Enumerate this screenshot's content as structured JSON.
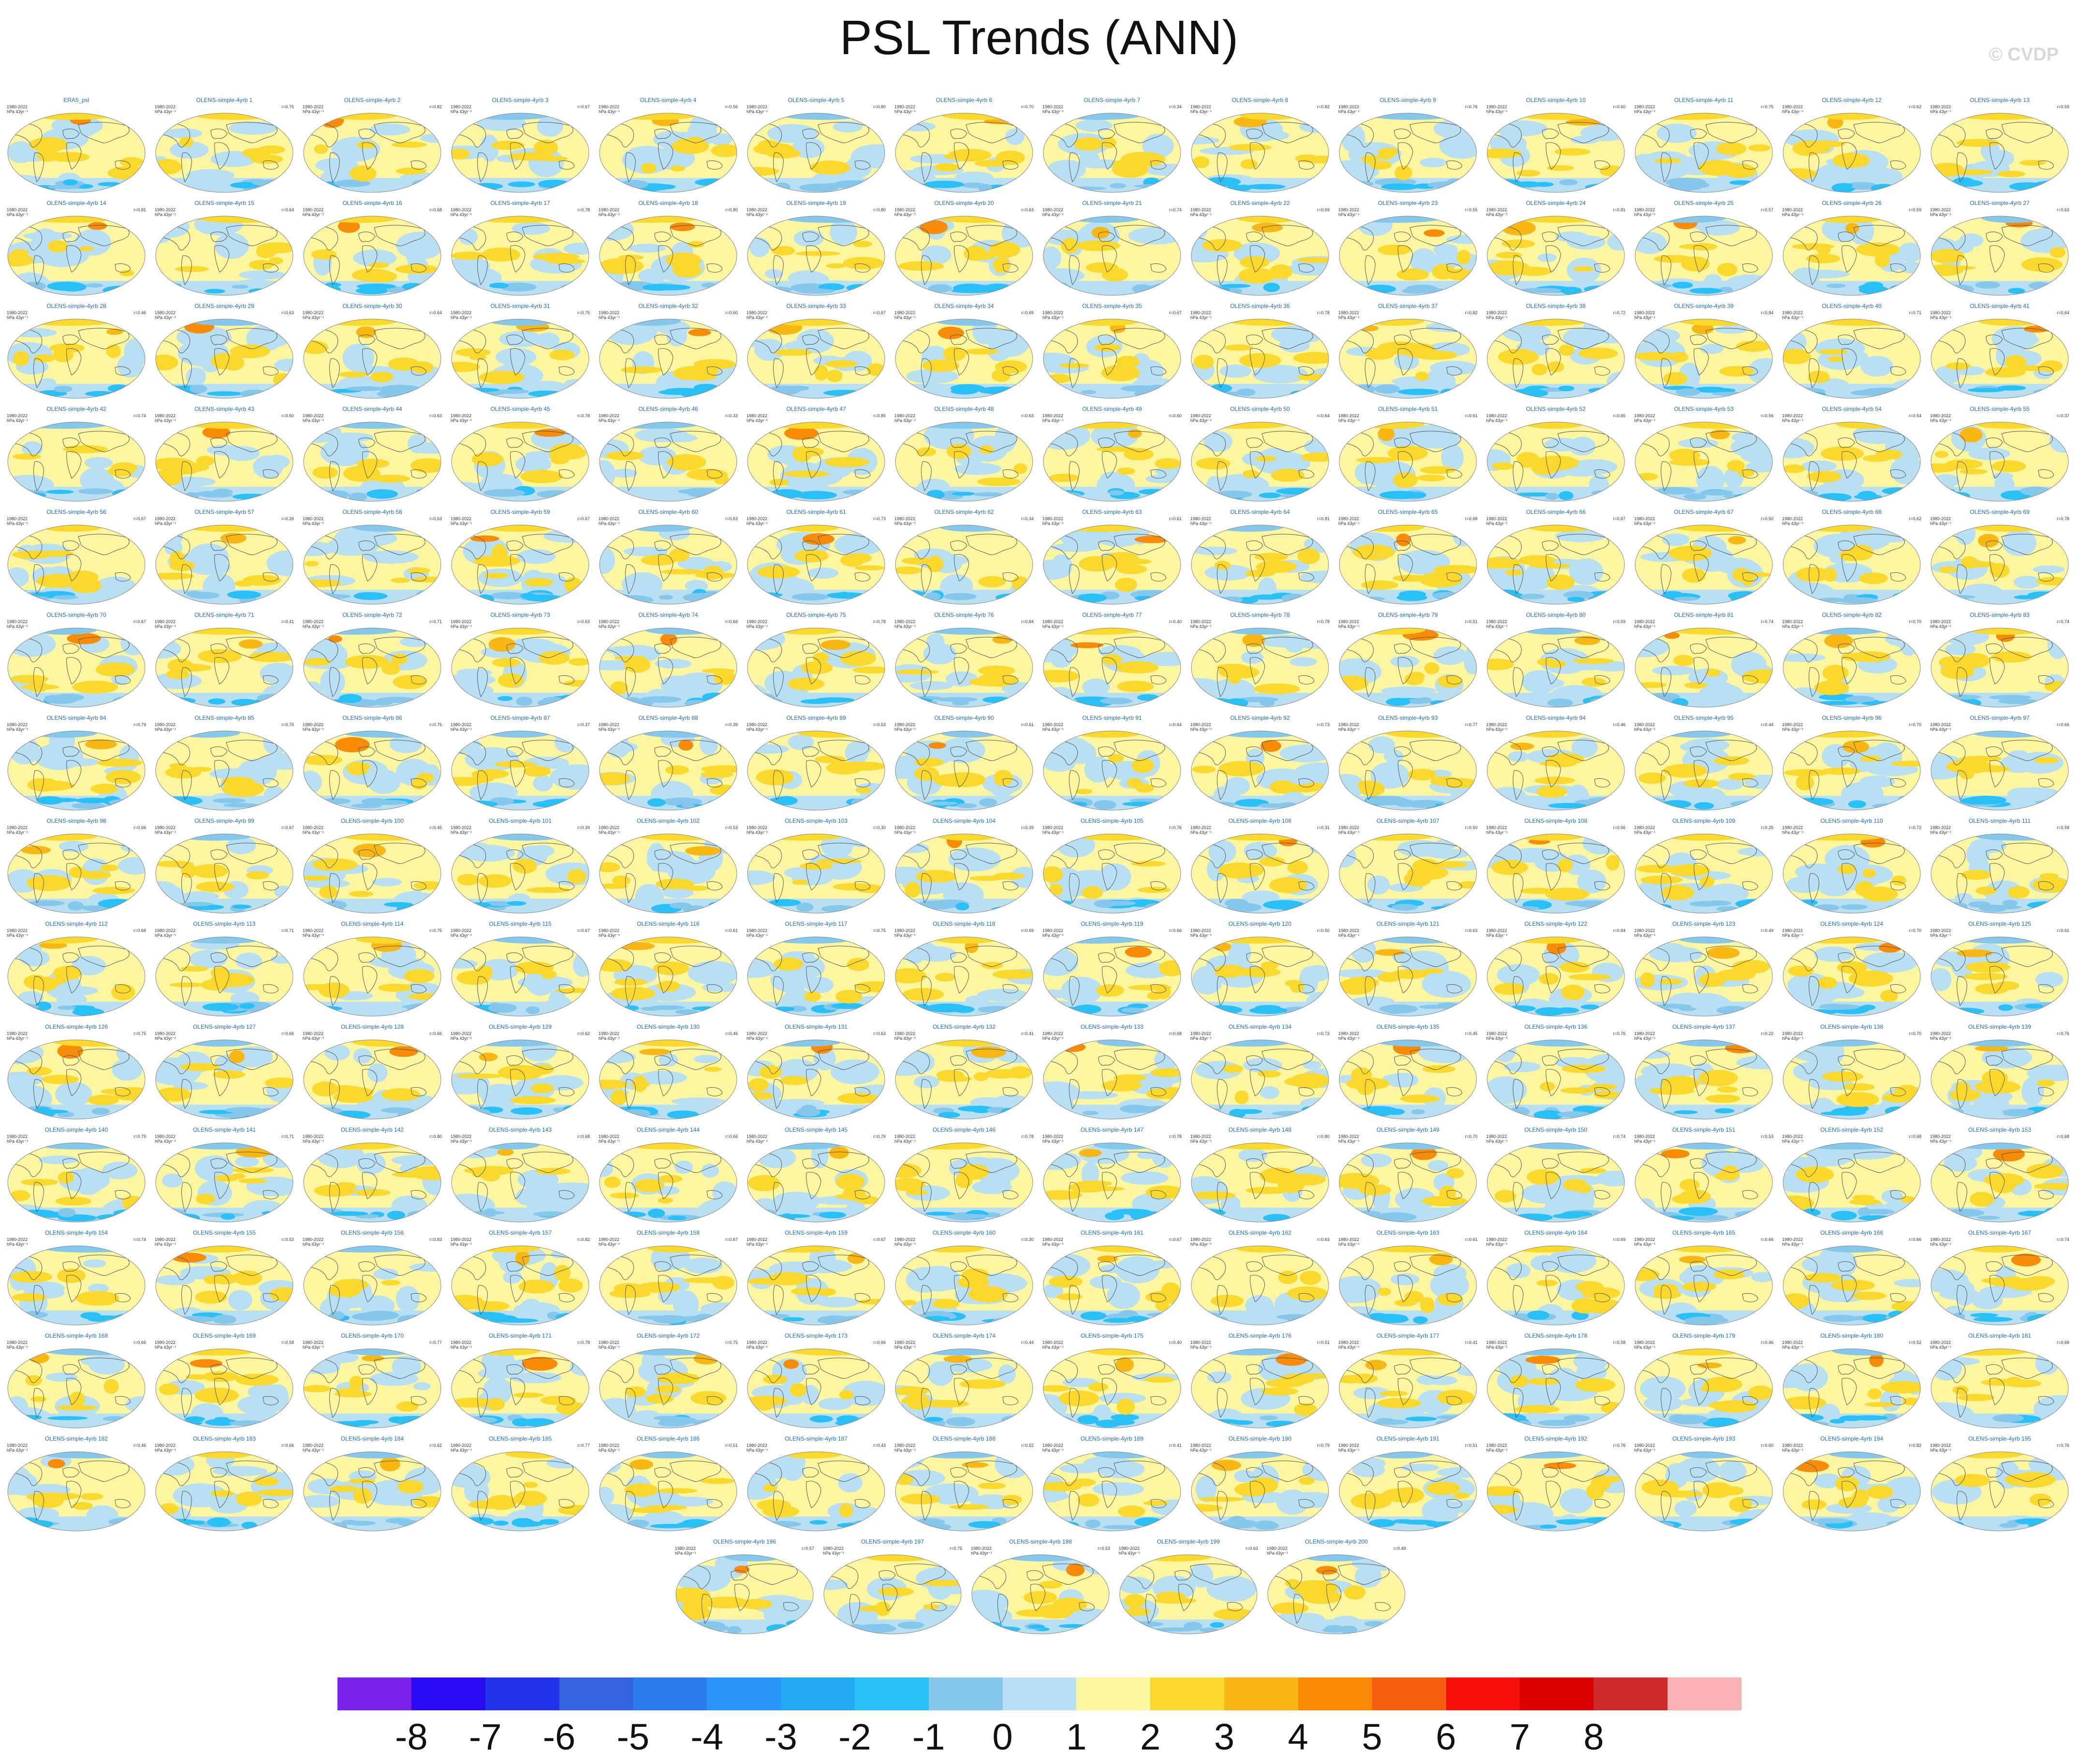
{
  "title": "PSL Trends (ANN)",
  "watermark": "© CVDP",
  "panel_info": {
    "period": "1980-2022",
    "units": "hPa 43yr⁻¹"
  },
  "panels": [
    {
      "name": "ERA5_psl",
      "r": ""
    },
    {
      "name": "OLENS-simple-4yrb 1",
      "r": "r=0.75"
    },
    {
      "name": "OLENS-simple-4yrb 2",
      "r": "r=0.82"
    },
    {
      "name": "OLENS-simple-4yrb 3",
      "r": "r=0.67"
    },
    {
      "name": "OLENS-simple-4yrb 4",
      "r": "r=0.56"
    },
    {
      "name": "OLENS-simple-4yrb 5",
      "r": "r=0.80"
    },
    {
      "name": "OLENS-simple-4yrb 6",
      "r": "r=0.70"
    },
    {
      "name": "OLENS-simple-4yrb 7",
      "r": "r=0.34"
    },
    {
      "name": "OLENS-simple-4yrb 8",
      "r": "r=0.82"
    },
    {
      "name": "OLENS-simple-4yrb 9",
      "r": "r=0.76"
    },
    {
      "name": "OLENS-simple-4yrb 10",
      "r": "r=0.60"
    },
    {
      "name": "OLENS-simple-4yrb 11",
      "r": "r=0.75"
    },
    {
      "name": "OLENS-simple-4yrb 12",
      "r": "r=0.62"
    },
    {
      "name": "OLENS-simple-4yrb 13",
      "r": "r=0.59"
    },
    {
      "name": "OLENS-simple-4yrb 14",
      "r": "r=0.81"
    },
    {
      "name": "OLENS-simple-4yrb 15",
      "r": "r=0.64"
    },
    {
      "name": "OLENS-simple-4yrb 16",
      "r": "r=0.68"
    },
    {
      "name": "OLENS-simple-4yrb 17",
      "r": "r=0.78"
    },
    {
      "name": "OLENS-simple-4yrb 18",
      "r": "r=0.80"
    },
    {
      "name": "OLENS-simple-4yrb 19",
      "r": "r=0.80"
    },
    {
      "name": "OLENS-simple-4yrb 20",
      "r": "r=0.63"
    },
    {
      "name": "OLENS-simple-4yrb 21",
      "r": "r=0.74"
    },
    {
      "name": "OLENS-simple-4yrb 22",
      "r": "r=0.69"
    },
    {
      "name": "OLENS-simple-4yrb 23",
      "r": "r=0.55"
    },
    {
      "name": "OLENS-simple-4yrb 24",
      "r": "r=0.81"
    },
    {
      "name": "OLENS-simple-4yrb 25",
      "r": "r=0.57"
    },
    {
      "name": "OLENS-simple-4yrb 26",
      "r": "r=0.59"
    },
    {
      "name": "OLENS-simple-4yrb 27",
      "r": "r=0.63"
    },
    {
      "name": "OLENS-simple-4yrb 28",
      "r": "r=0.46"
    },
    {
      "name": "OLENS-simple-4yrb 29",
      "r": "r=0.63"
    },
    {
      "name": "OLENS-simple-4yrb 30",
      "r": "r=0.64"
    },
    {
      "name": "OLENS-simple-4yrb 31",
      "r": "r=0.75"
    },
    {
      "name": "OLENS-simple-4yrb 32",
      "r": "r=0.60"
    },
    {
      "name": "OLENS-simple-4yrb 33",
      "r": "r=0.67"
    },
    {
      "name": "OLENS-simple-4yrb 34",
      "r": "r=0.69"
    },
    {
      "name": "OLENS-simple-4yrb 35",
      "r": "r=0.67"
    },
    {
      "name": "OLENS-simple-4yrb 36",
      "r": "r=0.78"
    },
    {
      "name": "OLENS-simple-4yrb 37",
      "r": "r=0.82"
    },
    {
      "name": "OLENS-simple-4yrb 38",
      "r": "r=0.72"
    },
    {
      "name": "OLENS-simple-4yrb 39",
      "r": "r=0.84"
    },
    {
      "name": "OLENS-simple-4yrb 40",
      "r": "r=0.71"
    },
    {
      "name": "OLENS-simple-4yrb 41",
      "r": "r=0.64"
    },
    {
      "name": "OLENS-simple-4yrb 42",
      "r": "r=0.74"
    },
    {
      "name": "OLENS-simple-4yrb 43",
      "r": "r=0.60"
    },
    {
      "name": "OLENS-simple-4yrb 44",
      "r": "r=0.63"
    },
    {
      "name": "OLENS-simple-4yrb 45",
      "r": "r=0.78"
    },
    {
      "name": "OLENS-simple-4yrb 46",
      "r": "r=0.33"
    },
    {
      "name": "OLENS-simple-4yrb 47",
      "r": "r=0.85"
    },
    {
      "name": "OLENS-simple-4yrb 48",
      "r": "r=0.63"
    },
    {
      "name": "OLENS-simple-4yrb 49",
      "r": "r=0.60"
    },
    {
      "name": "OLENS-simple-4yrb 50",
      "r": "r=0.64"
    },
    {
      "name": "OLENS-simple-4yrb 51",
      "r": "r=0.61"
    },
    {
      "name": "OLENS-simple-4yrb 52",
      "r": "r=0.65"
    },
    {
      "name": "OLENS-simple-4yrb 53",
      "r": "r=0.56"
    },
    {
      "name": "OLENS-simple-4yrb 54",
      "r": "r=0.54"
    },
    {
      "name": "OLENS-simple-4yrb 55",
      "r": "r=0.37"
    },
    {
      "name": "OLENS-simple-4yrb 56",
      "r": "r=0.67"
    },
    {
      "name": "OLENS-simple-4yrb 57",
      "r": "r=0.26"
    },
    {
      "name": "OLENS-simple-4yrb 58",
      "r": "r=0.63"
    },
    {
      "name": "OLENS-simple-4yrb 59",
      "r": "r=0.67"
    },
    {
      "name": "OLENS-simple-4yrb 60",
      "r": "r=0.63"
    },
    {
      "name": "OLENS-simple-4yrb 61",
      "r": "r=0.73"
    },
    {
      "name": "OLENS-simple-4yrb 62",
      "r": "r=0.34"
    },
    {
      "name": "OLENS-simple-4yrb 63",
      "r": "r=0.61"
    },
    {
      "name": "OLENS-simple-4yrb 64",
      "r": "r=0.81"
    },
    {
      "name": "OLENS-simple-4yrb 65",
      "r": "r=0.68"
    },
    {
      "name": "OLENS-simple-4yrb 66",
      "r": "r=0.67"
    },
    {
      "name": "OLENS-simple-4yrb 67",
      "r": "r=0.50"
    },
    {
      "name": "OLENS-simple-4yrb 68",
      "r": "r=0.62"
    },
    {
      "name": "OLENS-simple-4yrb 69",
      "r": "r=0.78"
    },
    {
      "name": "OLENS-simple-4yrb 70",
      "r": "r=0.67"
    },
    {
      "name": "OLENS-simple-4yrb 71",
      "r": "r=0.41"
    },
    {
      "name": "OLENS-simple-4yrb 72",
      "r": "r=0.71"
    },
    {
      "name": "OLENS-simple-4yrb 73",
      "r": "r=0.63"
    },
    {
      "name": "OLENS-simple-4yrb 74",
      "r": "r=0.66"
    },
    {
      "name": "OLENS-simple-4yrb 75",
      "r": "r=0.78"
    },
    {
      "name": "OLENS-simple-4yrb 76",
      "r": "r=0.84"
    },
    {
      "name": "OLENS-simple-4yrb 77",
      "r": "r=0.40"
    },
    {
      "name": "OLENS-simple-4yrb 78",
      "r": "r=0.78"
    },
    {
      "name": "OLENS-simple-4yrb 79",
      "r": "r=0.51"
    },
    {
      "name": "OLENS-simple-4yrb 80",
      "r": "r=0.59"
    },
    {
      "name": "OLENS-simple-4yrb 81",
      "r": "r=0.74"
    },
    {
      "name": "OLENS-simple-4yrb 82",
      "r": "r=0.70"
    },
    {
      "name": "OLENS-simple-4yrb 83",
      "r": "r=0.74"
    },
    {
      "name": "OLENS-simple-4yrb 84",
      "r": "r=0.79"
    },
    {
      "name": "OLENS-simple-4yrb 85",
      "r": "r=0.75"
    },
    {
      "name": "OLENS-simple-4yrb 86",
      "r": "r=0.76"
    },
    {
      "name": "OLENS-simple-4yrb 87",
      "r": "r=0.37"
    },
    {
      "name": "OLENS-simple-4yrb 88",
      "r": "r=0.39"
    },
    {
      "name": "OLENS-simple-4yrb 89",
      "r": "r=0.53"
    },
    {
      "name": "OLENS-simple-4yrb 90",
      "r": "r=0.61"
    },
    {
      "name": "OLENS-simple-4yrb 91",
      "r": "r=0.64"
    },
    {
      "name": "OLENS-simple-4yrb 92",
      "r": "r=0.73"
    },
    {
      "name": "OLENS-simple-4yrb 93",
      "r": "r=0.77"
    },
    {
      "name": "OLENS-simple-4yrb 94",
      "r": "r=0.46"
    },
    {
      "name": "OLENS-simple-4yrb 95",
      "r": "r=0.44"
    },
    {
      "name": "OLENS-simple-4yrb 96",
      "r": "r=0.70"
    },
    {
      "name": "OLENS-simple-4yrb 97",
      "r": "r=0.66"
    },
    {
      "name": "OLENS-simple-4yrb 98",
      "r": "r=0.66"
    },
    {
      "name": "OLENS-simple-4yrb 99",
      "r": "r=0.67"
    },
    {
      "name": "OLENS-simple-4yrb 100",
      "r": "r=0.45"
    },
    {
      "name": "OLENS-simple-4yrb 101",
      "r": "r=0.39"
    },
    {
      "name": "OLENS-simple-4yrb 102",
      "r": "r=0.53"
    },
    {
      "name": "OLENS-simple-4yrb 103",
      "r": "r=0.30"
    },
    {
      "name": "OLENS-simple-4yrb 104",
      "r": "r=0.39"
    },
    {
      "name": "OLENS-simple-4yrb 105",
      "r": "r=0.76"
    },
    {
      "name": "OLENS-simple-4yrb 106",
      "r": "r=0.31"
    },
    {
      "name": "OLENS-simple-4yrb 107",
      "r": "r=0.50"
    },
    {
      "name": "OLENS-simple-4yrb 108",
      "r": "r=0.56"
    },
    {
      "name": "OLENS-simple-4yrb 109",
      "r": "r=0.25"
    },
    {
      "name": "OLENS-simple-4yrb 110",
      "r": "r=0.72"
    },
    {
      "name": "OLENS-simple-4yrb 111",
      "r": "r=0.58"
    },
    {
      "name": "OLENS-simple-4yrb 112",
      "r": "r=0.68"
    },
    {
      "name": "OLENS-simple-4yrb 113",
      "r": "r=0.71"
    },
    {
      "name": "OLENS-simple-4yrb 114",
      "r": "r=0.75"
    },
    {
      "name": "OLENS-simple-4yrb 115",
      "r": "r=0.67"
    },
    {
      "name": "OLENS-simple-4yrb 116",
      "r": "r=0.61"
    },
    {
      "name": "OLENS-simple-4yrb 117",
      "r": "r=0.75"
    },
    {
      "name": "OLENS-simple-4yrb 118",
      "r": "r=0.69"
    },
    {
      "name": "OLENS-simple-4yrb 119",
      "r": "r=0.66"
    },
    {
      "name": "OLENS-simple-4yrb 120",
      "r": "r=0.50"
    },
    {
      "name": "OLENS-simple-4yrb 121",
      "r": "r=0.63"
    },
    {
      "name": "OLENS-simple-4yrb 122",
      "r": "r=0.84"
    },
    {
      "name": "OLENS-simple-4yrb 123",
      "r": "r=0.49"
    },
    {
      "name": "OLENS-simple-4yrb 124",
      "r": "r=0.70"
    },
    {
      "name": "OLENS-simple-4yrb 125",
      "r": "r=0.61"
    },
    {
      "name": "OLENS-simple-4yrb 126",
      "r": "r=0.75"
    },
    {
      "name": "OLENS-simple-4yrb 127",
      "r": "r=0.66"
    },
    {
      "name": "OLENS-simple-4yrb 128",
      "r": "r=0.66"
    },
    {
      "name": "OLENS-simple-4yrb 129",
      "r": "r=0.62"
    },
    {
      "name": "OLENS-simple-4yrb 130",
      "r": "r=0.46"
    },
    {
      "name": "OLENS-simple-4yrb 131",
      "r": "r=0.63"
    },
    {
      "name": "OLENS-simple-4yrb 132",
      "r": "r=0.41"
    },
    {
      "name": "OLENS-simple-4yrb 133",
      "r": "r=0.68"
    },
    {
      "name": "OLENS-simple-4yrb 134",
      "r": "r=0.72"
    },
    {
      "name": "OLENS-simple-4yrb 135",
      "r": "r=0.45"
    },
    {
      "name": "OLENS-simple-4yrb 136",
      "r": "r=0.76"
    },
    {
      "name": "OLENS-simple-4yrb 137",
      "r": "r=0.22"
    },
    {
      "name": "OLENS-simple-4yrb 138",
      "r": "r=0.70"
    },
    {
      "name": "OLENS-simple-4yrb 139",
      "r": "r=0.76"
    },
    {
      "name": "OLENS-simple-4yrb 140",
      "r": "r=0.79"
    },
    {
      "name": "OLENS-simple-4yrb 141",
      "r": "r=0.71"
    },
    {
      "name": "OLENS-simple-4yrb 142",
      "r": "r=0.80"
    },
    {
      "name": "OLENS-simple-4yrb 143",
      "r": "r=0.68"
    },
    {
      "name": "OLENS-simple-4yrb 144",
      "r": "r=0.66"
    },
    {
      "name": "OLENS-simple-4yrb 145",
      "r": "r=0.79"
    },
    {
      "name": "OLENS-simple-4yrb 146",
      "r": "r=0.78"
    },
    {
      "name": "OLENS-simple-4yrb 147",
      "r": "r=0.78"
    },
    {
      "name": "OLENS-simple-4yrb 148",
      "r": "r=0.80"
    },
    {
      "name": "OLENS-simple-4yrb 149",
      "r": "r=0.70"
    },
    {
      "name": "OLENS-simple-4yrb 150",
      "r": "r=0.74"
    },
    {
      "name": "OLENS-simple-4yrb 151",
      "r": "r=0.53"
    },
    {
      "name": "OLENS-simple-4yrb 152",
      "r": "r=0.68"
    },
    {
      "name": "OLENS-simple-4yrb 153",
      "r": "r=0.68"
    },
    {
      "name": "OLENS-simple-4yrb 154",
      "r": "r=0.74"
    },
    {
      "name": "OLENS-simple-4yrb 155",
      "r": "r=0.53"
    },
    {
      "name": "OLENS-simple-4yrb 156",
      "r": "r=0.83"
    },
    {
      "name": "OLENS-simple-4yrb 157",
      "r": "r=0.82"
    },
    {
      "name": "OLENS-simple-4yrb 158",
      "r": "r=0.67"
    },
    {
      "name": "OLENS-simple-4yrb 159",
      "r": "r=0.67"
    },
    {
      "name": "OLENS-simple-4yrb 160",
      "r": "r=0.30"
    },
    {
      "name": "OLENS-simple-4yrb 161",
      "r": "r=0.67"
    },
    {
      "name": "OLENS-simple-4yrb 162",
      "r": "r=0.63"
    },
    {
      "name": "OLENS-simple-4yrb 163",
      "r": "r=0.61"
    },
    {
      "name": "OLENS-simple-4yrb 164",
      "r": "r=0.69"
    },
    {
      "name": "OLENS-simple-4yrb 165",
      "r": "r=0.66"
    },
    {
      "name": "OLENS-simple-4yrb 166",
      "r": "r=0.66"
    },
    {
      "name": "OLENS-simple-4yrb 167",
      "r": "r=0.74"
    },
    {
      "name": "OLENS-simple-4yrb 168",
      "r": "r=0.66"
    },
    {
      "name": "OLENS-simple-4yrb 169",
      "r": "r=0.58"
    },
    {
      "name": "OLENS-simple-4yrb 170",
      "r": "r=0.77"
    },
    {
      "name": "OLENS-simple-4yrb 171",
      "r": "r=0.78"
    },
    {
      "name": "OLENS-simple-4yrb 172",
      "r": "r=0.75"
    },
    {
      "name": "OLENS-simple-4yrb 173",
      "r": "r=0.66"
    },
    {
      "name": "OLENS-simple-4yrb 174",
      "r": "r=0.44"
    },
    {
      "name": "OLENS-simple-4yrb 175",
      "r": "r=0.40"
    },
    {
      "name": "OLENS-simple-4yrb 176",
      "r": "r=0.51"
    },
    {
      "name": "OLENS-simple-4yrb 177",
      "r": "r=0.41"
    },
    {
      "name": "OLENS-simple-4yrb 178",
      "r": "r=0.58"
    },
    {
      "name": "OLENS-simple-4yrb 179",
      "r": "r=0.46"
    },
    {
      "name": "OLENS-simple-4yrb 180",
      "r": "r=0.52"
    },
    {
      "name": "OLENS-simple-4yrb 181",
      "r": "r=0.68"
    },
    {
      "name": "OLENS-simple-4yrb 182",
      "r": "r=0.46"
    },
    {
      "name": "OLENS-simple-4yrb 183",
      "r": "r=0.66"
    },
    {
      "name": "OLENS-simple-4yrb 184",
      "r": "r=0.62"
    },
    {
      "name": "OLENS-simple-4yrb 185",
      "r": "r=0.77"
    },
    {
      "name": "OLENS-simple-4yrb 186",
      "r": "r=0.51"
    },
    {
      "name": "OLENS-simple-4yrb 187",
      "r": "r=0.43"
    },
    {
      "name": "OLENS-simple-4yrb 188",
      "r": "r=0.52"
    },
    {
      "name": "OLENS-simple-4yrb 189",
      "r": "r=0.41"
    },
    {
      "name": "OLENS-simple-4yrb 190",
      "r": "r=0.79"
    },
    {
      "name": "OLENS-simple-4yrb 191",
      "r": "r=0.51"
    },
    {
      "name": "OLENS-simple-4yrb 192",
      "r": "r=0.76"
    },
    {
      "name": "OLENS-simple-4yrb 193",
      "r": "r=0.60"
    },
    {
      "name": "OLENS-simple-4yrb 194",
      "r": "r=0.82"
    },
    {
      "name": "OLENS-simple-4yrb 195",
      "r": "r=0.76"
    },
    {
      "name": "OLENS-simple-4yrb 196",
      "r": "r=0.57"
    },
    {
      "name": "OLENS-simple-4yrb 197",
      "r": "r=0.75"
    },
    {
      "name": "OLENS-simple-4yrb 198",
      "r": "r=0.53"
    },
    {
      "name": "OLENS-simple-4yrb 199",
      "r": "r=0.63"
    },
    {
      "name": "OLENS-simple-4yrb 200",
      "r": "r=0.49"
    }
  ],
  "colorbar": {
    "colors": [
      "#7b22ea",
      "#2a0cf3",
      "#2233e8",
      "#3564e0",
      "#2e7bf0",
      "#2a95f6",
      "#20aaf2",
      "#29c0f8",
      "#86c8ec",
      "#b9dff2",
      "#fdf6a0",
      "#fbd92c",
      "#f9b713",
      "#f88c09",
      "#f65e0f",
      "#f81109",
      "#db0001",
      "#cd2929",
      "#fbb1b4"
    ],
    "labels": [
      "-8",
      "-7",
      "-6",
      "-5",
      "-4",
      "-3",
      "-2",
      "-1",
      "0",
      "1",
      "2",
      "3",
      "4",
      "5",
      "6",
      "7",
      "8"
    ]
  },
  "map_palette": {
    "ocean_base": "#fdf6a0",
    "light_blue": "#b9dff2",
    "mid_blue": "#86c8ec",
    "blue": "#29c0f8",
    "deep_blue": "#2a95f6",
    "yellow": "#fbd92c",
    "orange": "#f9b713",
    "red_orange": "#f88c09",
    "coast": "#555555"
  }
}
